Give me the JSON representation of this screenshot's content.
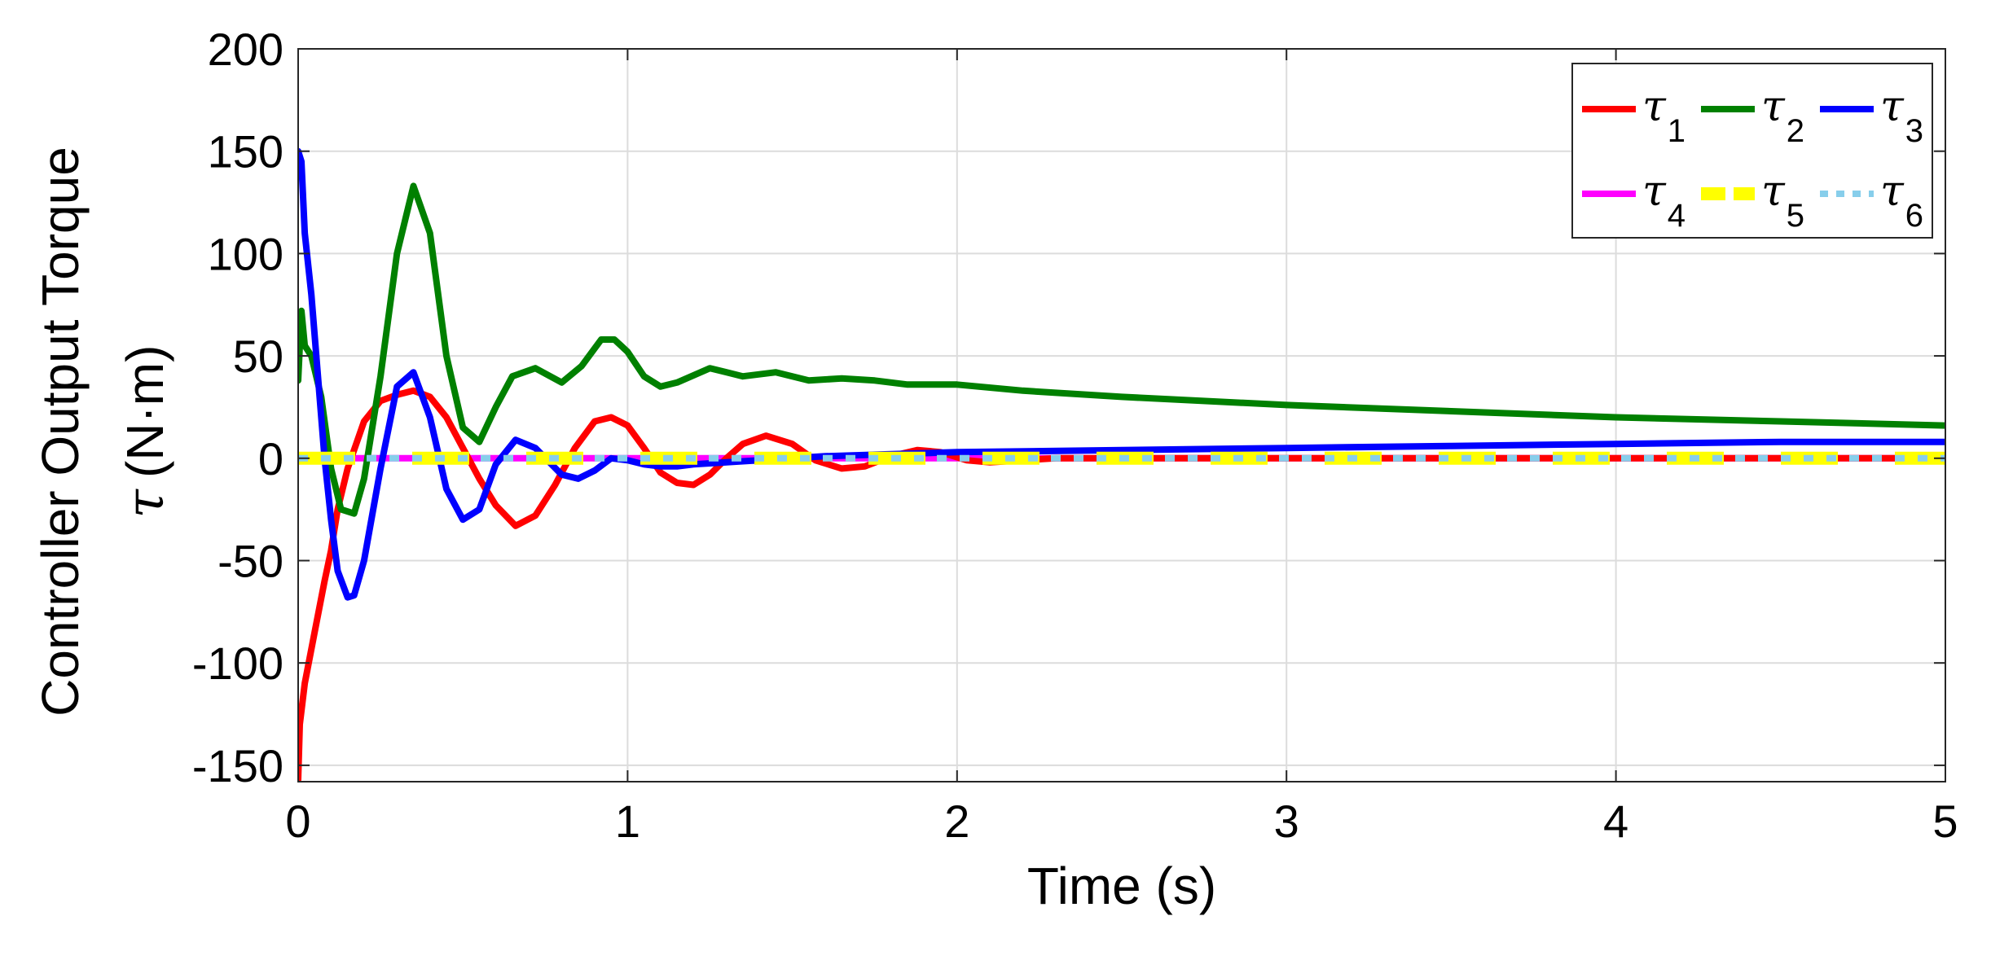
{
  "chart_data": {
    "type": "line",
    "title": "",
    "xlabel": "Time (s)",
    "ylabel_line1": "Controller Output Torque",
    "ylabel_symbol": "τ",
    "ylabel_units": "(N·m)",
    "xlim": [
      0,
      5
    ],
    "ylim": [
      -158,
      200
    ],
    "xticks": [
      0,
      1,
      2,
      3,
      4,
      5
    ],
    "yticks": [
      -150,
      -100,
      -50,
      0,
      50,
      100,
      150,
      200
    ],
    "xtick_labels": [
      "0",
      "1",
      "2",
      "3",
      "4",
      "5"
    ],
    "ytick_labels": [
      "-150",
      "-100",
      "-50",
      "0",
      "50",
      "100",
      "150",
      "200"
    ],
    "grid": true,
    "legend_position": "top-right",
    "series": [
      {
        "name": "τ1",
        "symbol": "τ",
        "sub": "1",
        "color": "#ff0000",
        "style": "solid",
        "x": [
          0,
          0.005,
          0.02,
          0.05,
          0.08,
          0.1,
          0.12,
          0.15,
          0.2,
          0.25,
          0.3,
          0.35,
          0.4,
          0.45,
          0.5,
          0.55,
          0.6,
          0.66,
          0.72,
          0.78,
          0.84,
          0.9,
          0.95,
          1.0,
          1.05,
          1.1,
          1.15,
          1.2,
          1.25,
          1.3,
          1.35,
          1.42,
          1.5,
          1.57,
          1.65,
          1.72,
          1.8,
          1.88,
          1.95,
          2.03,
          2.1,
          2.2,
          2.3,
          2.5,
          3.0,
          4.0,
          5.0
        ],
        "y": [
          -157,
          -130,
          -110,
          -85,
          -60,
          -45,
          -25,
          -5,
          18,
          28,
          31,
          33,
          30,
          20,
          5,
          -10,
          -23,
          -33,
          -28,
          -13,
          5,
          18,
          20,
          16,
          5,
          -7,
          -12,
          -13,
          -8,
          0,
          7,
          11,
          7,
          -1,
          -5,
          -4,
          1,
          4,
          3,
          -1,
          -2,
          -1,
          0,
          0,
          0,
          0,
          0
        ]
      },
      {
        "name": "τ2",
        "symbol": "τ",
        "sub": "2",
        "color": "#008000",
        "style": "solid",
        "x": [
          0,
          0.01,
          0.02,
          0.04,
          0.07,
          0.1,
          0.13,
          0.17,
          0.2,
          0.25,
          0.3,
          0.35,
          0.4,
          0.45,
          0.5,
          0.55,
          0.6,
          0.65,
          0.72,
          0.8,
          0.86,
          0.92,
          0.96,
          1.0,
          1.05,
          1.1,
          1.15,
          1.25,
          1.35,
          1.45,
          1.55,
          1.65,
          1.75,
          1.85,
          2.0,
          2.2,
          2.5,
          3.0,
          3.5,
          4.0,
          4.5,
          5.0
        ],
        "y": [
          38,
          72,
          55,
          50,
          30,
          -5,
          -25,
          -27,
          -10,
          40,
          100,
          133,
          110,
          50,
          15,
          8,
          25,
          40,
          44,
          37,
          45,
          58,
          58,
          52,
          40,
          35,
          37,
          44,
          40,
          42,
          38,
          39,
          38,
          36,
          36,
          33,
          30,
          26,
          23,
          20,
          18,
          16
        ]
      },
      {
        "name": "τ3",
        "symbol": "τ",
        "sub": "3",
        "color": "#0000ff",
        "style": "solid",
        "x": [
          0,
          0.01,
          0.02,
          0.04,
          0.06,
          0.08,
          0.1,
          0.12,
          0.15,
          0.17,
          0.2,
          0.25,
          0.3,
          0.35,
          0.4,
          0.45,
          0.5,
          0.55,
          0.6,
          0.66,
          0.72,
          0.8,
          0.85,
          0.9,
          0.95,
          1.0,
          1.05,
          1.1,
          1.15,
          1.2,
          1.3,
          1.4,
          1.5,
          1.6,
          1.8,
          2.0,
          2.5,
          3.0,
          3.5,
          4.0,
          4.5,
          5.0
        ],
        "y": [
          150,
          145,
          110,
          80,
          40,
          0,
          -30,
          -55,
          -68,
          -67,
          -50,
          -5,
          35,
          42,
          20,
          -15,
          -30,
          -25,
          -3,
          9,
          5,
          -8,
          -10,
          -6,
          0,
          -1,
          -3,
          -4,
          -4,
          -3,
          -2,
          -1,
          0,
          1,
          2,
          3,
          4,
          5,
          6,
          7,
          8,
          8
        ]
      },
      {
        "name": "τ4",
        "symbol": "τ",
        "sub": "4",
        "color": "#ff00ff",
        "style": "solid",
        "x": [
          0,
          5
        ],
        "y": [
          0,
          0
        ]
      },
      {
        "name": "τ5",
        "symbol": "τ",
        "sub": "5",
        "color": "#ffff00",
        "style": "dashed",
        "x": [
          0,
          5
        ],
        "y": [
          0,
          0
        ]
      },
      {
        "name": "τ6",
        "symbol": "τ",
        "sub": "6",
        "color": "#87ceeb",
        "style": "dotted",
        "x": [
          0,
          5
        ],
        "y": [
          0,
          0
        ]
      }
    ]
  }
}
